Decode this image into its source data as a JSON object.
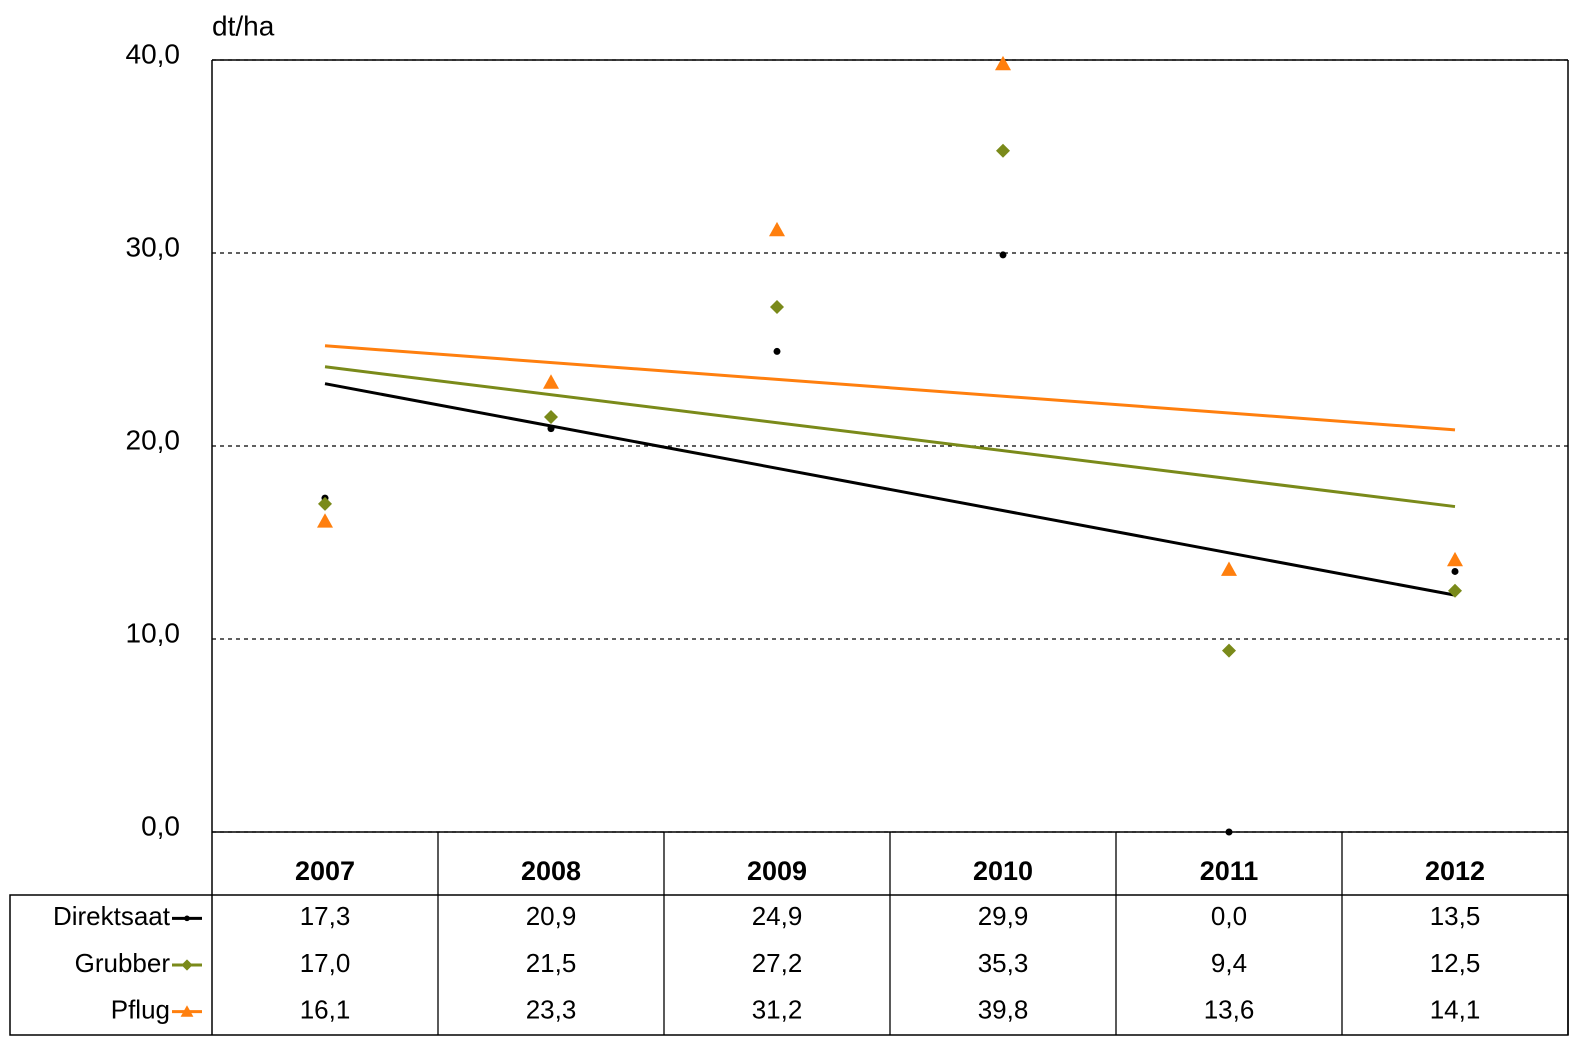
{
  "chart_data": {
    "type": "scatter",
    "y_label": "dt/ha",
    "categories": [
      "2007",
      "2008",
      "2009",
      "2010",
      "2011",
      "2012"
    ],
    "series": [
      {
        "name": "Direktsaat",
        "color": "#000000",
        "marker": "circle",
        "values": [
          17.3,
          20.9,
          24.9,
          29.9,
          0.0,
          13.5
        ],
        "value_labels": [
          "17,3",
          "20,9",
          "24,9",
          "29,9",
          "0,0",
          "13,5"
        ]
      },
      {
        "name": "Grubber",
        "color": "#7a8a1a",
        "marker": "diamond",
        "values": [
          17.0,
          21.5,
          27.2,
          35.3,
          9.4,
          12.5
        ],
        "value_labels": [
          "17,0",
          "21,5",
          "27,2",
          "35,3",
          "9,4",
          "12,5"
        ]
      },
      {
        "name": "Pflug",
        "color": "#ff7f0e",
        "marker": "triangle",
        "values": [
          16.1,
          23.3,
          31.2,
          39.8,
          13.6,
          14.1
        ],
        "value_labels": [
          "16,1",
          "23,3",
          "31,2",
          "39,8",
          "13,6",
          "14,1"
        ]
      }
    ],
    "trendline": "linear",
    "ylim": [
      0,
      40
    ],
    "yticks": [
      {
        "value": 0,
        "label": "0,0"
      },
      {
        "value": 10,
        "label": "10,0"
      },
      {
        "value": 20,
        "label": "20,0"
      },
      {
        "value": 30,
        "label": "30,0"
      },
      {
        "value": 40,
        "label": "40,0"
      }
    ],
    "grid": true
  }
}
